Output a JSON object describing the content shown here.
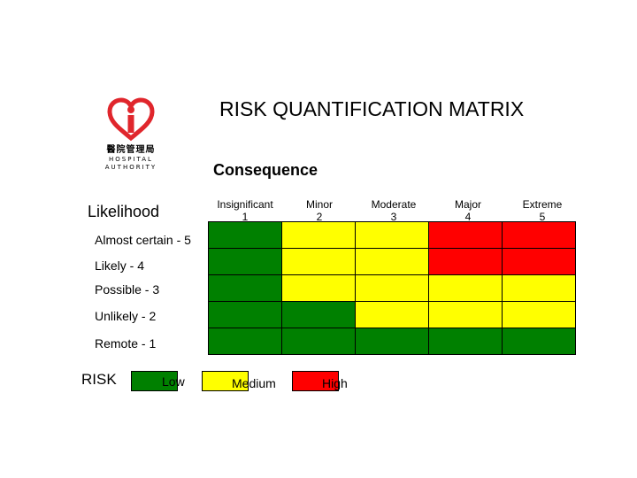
{
  "logo": {
    "cn_text": "醫院管理局",
    "en_line1": "HOSPITAL",
    "en_line2": "AUTHORITY"
  },
  "title": "RISK QUANTIFICATION MATRIX",
  "consequence_heading": "Consequence",
  "likelihood_heading": "Likelihood",
  "consequences": [
    {
      "name": "Insignificant",
      "score": "1"
    },
    {
      "name": "Minor",
      "score": "2"
    },
    {
      "name": "Moderate",
      "score": "3"
    },
    {
      "name": "Major",
      "score": "4"
    },
    {
      "name": "Extreme",
      "score": "5"
    }
  ],
  "likelihoods": [
    {
      "label": "Almost certain - 5",
      "cells": [
        "low",
        "medium",
        "medium",
        "high",
        "high"
      ]
    },
    {
      "label": "Likely - 4",
      "cells": [
        "low",
        "medium",
        "medium",
        "high",
        "high"
      ]
    },
    {
      "label": "Possible - 3",
      "cells": [
        "low",
        "medium",
        "medium",
        "medium",
        "medium"
      ]
    },
    {
      "label": "Unlikely - 2",
      "cells": [
        "low",
        "low",
        "medium",
        "medium",
        "medium"
      ]
    },
    {
      "label": "Remote - 1",
      "cells": [
        "low",
        "low",
        "low",
        "low",
        "low"
      ]
    }
  ],
  "legend": {
    "title": "RISK",
    "items": [
      {
        "key": "low",
        "label": "Low",
        "color": "#008000"
      },
      {
        "key": "medium",
        "label": "Medium",
        "color": "#ffff00"
      },
      {
        "key": "high",
        "label": "High",
        "color": "#ff0000"
      }
    ]
  },
  "colors": {
    "logo_red": "#e0262c",
    "low": "#008000",
    "medium": "#ffff00",
    "high": "#ff0000"
  }
}
